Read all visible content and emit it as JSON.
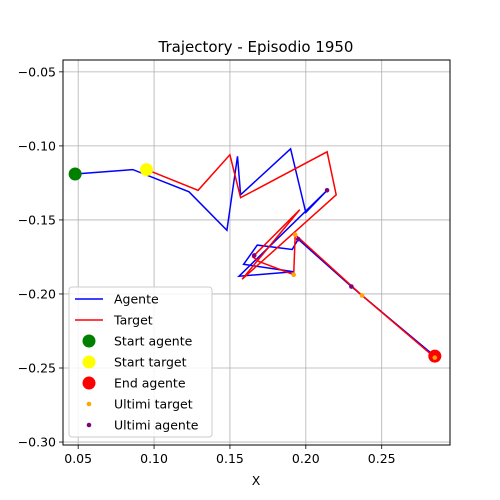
{
  "chart_data": {
    "type": "line",
    "title": "Trajectory - Episodio 1950",
    "xlabel": "X",
    "ylabel": "",
    "xlim": [
      0.04,
      0.295
    ],
    "ylim": [
      -0.302,
      -0.042
    ],
    "xticks": [
      0.05,
      0.1,
      0.15,
      0.2,
      0.25
    ],
    "xtick_labels": [
      "0.05",
      "0.10",
      "0.15",
      "0.20",
      "0.25"
    ],
    "yticks": [
      -0.05,
      -0.1,
      -0.15,
      -0.2,
      -0.25,
      -0.3
    ],
    "ytick_labels": [
      "−0.05",
      "−0.10",
      "−0.15",
      "−0.20",
      "−0.25",
      "−0.30"
    ],
    "grid": true,
    "legend_position": "lower-left",
    "series": [
      {
        "name": "Agente",
        "kind": "line",
        "color": "#0000ff",
        "x": [
          0.048,
          0.086,
          0.123,
          0.148,
          0.155,
          0.157,
          0.19,
          0.2,
          0.214,
          0.156,
          0.192,
          0.159,
          0.168,
          0.191,
          0.195,
          0.23,
          0.285
        ],
        "y": [
          -0.119,
          -0.116,
          -0.131,
          -0.157,
          -0.107,
          -0.133,
          -0.102,
          -0.145,
          -0.13,
          -0.188,
          -0.185,
          -0.18,
          -0.167,
          -0.17,
          -0.163,
          -0.195,
          -0.242
        ]
      },
      {
        "name": "Target",
        "kind": "line",
        "color": "#ff0000",
        "x": [
          0.095,
          0.129,
          0.15,
          0.157,
          0.214,
          0.22,
          0.158,
          0.196,
          0.165,
          0.169,
          0.192,
          0.193,
          0.237,
          0.285
        ],
        "y": [
          -0.116,
          -0.13,
          -0.106,
          -0.135,
          -0.104,
          -0.133,
          -0.19,
          -0.143,
          -0.175,
          -0.178,
          -0.187,
          -0.16,
          -0.201,
          -0.243
        ]
      },
      {
        "name": "Start agente",
        "kind": "marker",
        "color": "#008000",
        "x": [
          0.048
        ],
        "y": [
          -0.119
        ]
      },
      {
        "name": "Start target",
        "kind": "marker",
        "color": "#ffff00",
        "x": [
          0.095
        ],
        "y": [
          -0.116
        ]
      },
      {
        "name": "End agente",
        "kind": "marker",
        "color": "#ff0000",
        "x": [
          0.285
        ],
        "y": [
          -0.242
        ]
      },
      {
        "name": "Ultimi target",
        "kind": "scatter",
        "color": "#ffa500",
        "x": [
          0.192,
          0.193,
          0.237,
          0.285
        ],
        "y": [
          -0.187,
          -0.16,
          -0.201,
          -0.243
        ]
      },
      {
        "name": "Ultimi agente",
        "kind": "scatter",
        "color": "#800080",
        "x": [
          0.214,
          0.166,
          0.195,
          0.23
        ],
        "y": [
          -0.13,
          -0.174,
          -0.163,
          -0.195
        ]
      }
    ]
  }
}
